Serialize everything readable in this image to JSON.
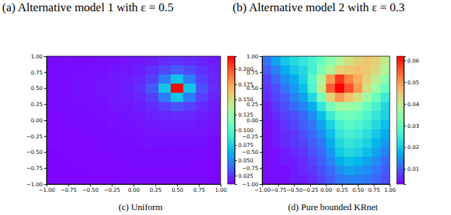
{
  "other_captions": [
    "(a) Alternative model 1 with ε = 0.5",
    "(b) Alternative model 2 with ε = 0.3"
  ],
  "chart_data": [
    {
      "type": "heatmap",
      "title": "(c) Uniform",
      "xlim": [
        -1,
        1
      ],
      "ylim": [
        -1,
        1
      ],
      "xticks": [
        {
          "value": -1,
          "label": "−1.00"
        },
        {
          "value": -0.75,
          "label": "−0.75"
        },
        {
          "value": -0.5,
          "label": "−0.50"
        },
        {
          "value": -0.25,
          "label": "−0.25"
        },
        {
          "value": 0,
          "label": "0.00"
        },
        {
          "value": 0.25,
          "label": "0.25"
        },
        {
          "value": 0.5,
          "label": "0.50"
        },
        {
          "value": 0.75,
          "label": "0.75"
        },
        {
          "value": 1,
          "label": "1.00"
        }
      ],
      "yticks": [
        {
          "value": -1,
          "label": "−1.00"
        },
        {
          "value": -0.75,
          "label": "−0.75"
        },
        {
          "value": -0.5,
          "label": "−0.50"
        },
        {
          "value": -0.25,
          "label": "−0.25"
        },
        {
          "value": 0,
          "label": "0.00"
        },
        {
          "value": 0.25,
          "label": "0.25"
        },
        {
          "value": 0.5,
          "label": "0.50"
        },
        {
          "value": 0.75,
          "label": "0.75"
        },
        {
          "value": 1,
          "label": "1.00"
        }
      ],
      "colorbar": {
        "range": [
          0.011,
          0.221
        ],
        "ticks": [
          0.025,
          {
            "value": 0.05,
            "label": "0.050"
          },
          0.075,
          {
            "value": 0.1,
            "label": "0.100"
          },
          0.125,
          {
            "value": 0.15,
            "label": "0.150"
          },
          0.175,
          {
            "value": 0.2,
            "label": "0.200"
          }
        ]
      },
      "cells": {
        "x": [
          -0.9286,
          -0.7857,
          -0.6429,
          -0.5,
          -0.3571,
          -0.2143,
          -0.0714,
          0.0714,
          0.2143,
          0.3571,
          0.5,
          0.6429,
          0.7857,
          0.9286
        ],
        "y": [
          0.9286,
          0.7857,
          0.6429,
          0.5,
          0.3571,
          0.2143,
          0.0714,
          -0.0714,
          -0.2143,
          -0.3571,
          -0.5,
          -0.6429,
          -0.7857,
          -0.9286
        ],
        "z": [
          [
            0.014,
            0.014,
            0.014,
            0.014,
            0.015,
            0.015,
            0.016,
            0.017,
            0.019,
            0.022,
            0.024,
            0.022,
            0.02,
            0.018
          ],
          [
            0.014,
            0.014,
            0.014,
            0.015,
            0.015,
            0.016,
            0.017,
            0.019,
            0.023,
            0.03,
            0.035,
            0.03,
            0.024,
            0.02
          ],
          [
            0.014,
            0.014,
            0.015,
            0.015,
            0.016,
            0.017,
            0.018,
            0.021,
            0.028,
            0.045,
            0.07,
            0.045,
            0.028,
            0.021
          ],
          [
            0.014,
            0.014,
            0.015,
            0.015,
            0.016,
            0.017,
            0.019,
            0.023,
            0.035,
            0.07,
            0.22,
            0.07,
            0.033,
            0.022
          ],
          [
            0.014,
            0.014,
            0.015,
            0.015,
            0.016,
            0.017,
            0.018,
            0.021,
            0.028,
            0.045,
            0.07,
            0.045,
            0.028,
            0.02
          ],
          [
            0.014,
            0.014,
            0.014,
            0.015,
            0.015,
            0.016,
            0.017,
            0.019,
            0.022,
            0.028,
            0.033,
            0.028,
            0.022,
            0.018
          ],
          [
            0.013,
            0.014,
            0.014,
            0.014,
            0.015,
            0.015,
            0.016,
            0.017,
            0.019,
            0.021,
            0.022,
            0.021,
            0.019,
            0.017
          ],
          [
            0.013,
            0.013,
            0.014,
            0.014,
            0.014,
            0.015,
            0.015,
            0.016,
            0.017,
            0.018,
            0.018,
            0.018,
            0.017,
            0.016
          ],
          [
            0.013,
            0.013,
            0.013,
            0.014,
            0.014,
            0.014,
            0.015,
            0.015,
            0.016,
            0.016,
            0.016,
            0.016,
            0.016,
            0.015
          ],
          [
            0.013,
            0.013,
            0.013,
            0.013,
            0.014,
            0.014,
            0.014,
            0.015,
            0.015,
            0.015,
            0.015,
            0.015,
            0.015,
            0.014
          ],
          [
            0.012,
            0.013,
            0.013,
            0.013,
            0.013,
            0.014,
            0.014,
            0.014,
            0.014,
            0.014,
            0.014,
            0.014,
            0.014,
            0.014
          ],
          [
            0.012,
            0.012,
            0.013,
            0.013,
            0.013,
            0.013,
            0.013,
            0.014,
            0.014,
            0.014,
            0.014,
            0.014,
            0.013,
            0.013
          ],
          [
            0.012,
            0.012,
            0.012,
            0.013,
            0.013,
            0.013,
            0.013,
            0.013,
            0.013,
            0.013,
            0.013,
            0.013,
            0.013,
            0.013
          ],
          [
            0.012,
            0.012,
            0.012,
            0.012,
            0.012,
            0.012,
            0.013,
            0.013,
            0.013,
            0.013,
            0.013,
            0.013,
            0.013,
            0.012
          ]
        ]
      }
    },
    {
      "type": "heatmap",
      "title": "(d) Pure bounded KRnet",
      "xlim": [
        -1,
        1
      ],
      "ylim": [
        -1,
        1
      ],
      "xticks": [
        {
          "value": -1,
          "label": "−1.00"
        },
        {
          "value": -0.75,
          "label": "−0.75"
        },
        {
          "value": -0.5,
          "label": "−0.50"
        },
        {
          "value": -0.25,
          "label": "−0.25"
        },
        {
          "value": 0,
          "label": "0.00"
        },
        {
          "value": 0.25,
          "label": "0.25"
        },
        {
          "value": 0.5,
          "label": "0.50"
        },
        {
          "value": 0.75,
          "label": "0.75"
        },
        {
          "value": 1,
          "label": "1.00"
        }
      ],
      "yticks": [
        {
          "value": -1,
          "label": "−1.00"
        },
        {
          "value": -0.75,
          "label": "−0.75"
        },
        {
          "value": -0.5,
          "label": "−0.50"
        },
        {
          "value": -0.25,
          "label": "−0.25"
        },
        {
          "value": 0,
          "label": "0.00"
        },
        {
          "value": 0.25,
          "label": "0.25"
        },
        {
          "value": 0.5,
          "label": "0.50"
        },
        {
          "value": 0.75,
          "label": "0.75"
        },
        {
          "value": 1,
          "label": "1.00"
        }
      ],
      "colorbar": {
        "range": [
          0.003,
          0.062
        ],
        "ticks": [
          0.01,
          0.02,
          0.03,
          0.04,
          0.05,
          0.06
        ]
      },
      "cells": {
        "x": [
          -0.9286,
          -0.7857,
          -0.6429,
          -0.5,
          -0.3571,
          -0.2143,
          -0.0714,
          0.0714,
          0.2143,
          0.3571,
          0.5,
          0.6429,
          0.7857,
          0.9286
        ],
        "y": [
          0.9286,
          0.7857,
          0.6429,
          0.5,
          0.3571,
          0.2143,
          0.0714,
          -0.0714,
          -0.2143,
          -0.3571,
          -0.5,
          -0.6429,
          -0.7857,
          -0.9286
        ],
        "z": [
          [
            0.012,
            0.016,
            0.02,
            0.022,
            0.024,
            0.026,
            0.03,
            0.034,
            0.038,
            0.042,
            0.044,
            0.045,
            0.044,
            0.04
          ],
          [
            0.01,
            0.013,
            0.017,
            0.02,
            0.022,
            0.026,
            0.032,
            0.038,
            0.044,
            0.045,
            0.046,
            0.045,
            0.043,
            0.038
          ],
          [
            0.008,
            0.011,
            0.014,
            0.017,
            0.021,
            0.028,
            0.038,
            0.05,
            0.058,
            0.052,
            0.048,
            0.044,
            0.04,
            0.034
          ],
          [
            0.007,
            0.009,
            0.012,
            0.015,
            0.019,
            0.027,
            0.04,
            0.055,
            0.062,
            0.056,
            0.05,
            0.042,
            0.036,
            0.03
          ],
          [
            0.006,
            0.008,
            0.01,
            0.013,
            0.016,
            0.022,
            0.032,
            0.044,
            0.05,
            0.046,
            0.042,
            0.036,
            0.03,
            0.025
          ],
          [
            0.005,
            0.007,
            0.009,
            0.011,
            0.013,
            0.017,
            0.024,
            0.032,
            0.036,
            0.036,
            0.034,
            0.03,
            0.026,
            0.022
          ],
          [
            0.005,
            0.006,
            0.008,
            0.009,
            0.011,
            0.014,
            0.019,
            0.025,
            0.03,
            0.031,
            0.03,
            0.027,
            0.024,
            0.021
          ],
          [
            0.004,
            0.005,
            0.007,
            0.008,
            0.01,
            0.012,
            0.016,
            0.021,
            0.026,
            0.028,
            0.027,
            0.025,
            0.022,
            0.019
          ],
          [
            0.004,
            0.005,
            0.006,
            0.007,
            0.009,
            0.011,
            0.014,
            0.019,
            0.024,
            0.026,
            0.025,
            0.023,
            0.02,
            0.017
          ],
          [
            0.004,
            0.005,
            0.006,
            0.007,
            0.008,
            0.01,
            0.012,
            0.017,
            0.022,
            0.024,
            0.023,
            0.021,
            0.018,
            0.015
          ],
          [
            0.004,
            0.004,
            0.005,
            0.006,
            0.007,
            0.009,
            0.011,
            0.015,
            0.02,
            0.022,
            0.021,
            0.019,
            0.016,
            0.013
          ],
          [
            0.004,
            0.004,
            0.005,
            0.005,
            0.006,
            0.008,
            0.01,
            0.013,
            0.017,
            0.019,
            0.018,
            0.016,
            0.014,
            0.011
          ],
          [
            0.004,
            0.004,
            0.004,
            0.005,
            0.006,
            0.007,
            0.009,
            0.011,
            0.014,
            0.016,
            0.015,
            0.014,
            0.012,
            0.01
          ],
          [
            0.004,
            0.004,
            0.004,
            0.005,
            0.005,
            0.006,
            0.008,
            0.01,
            0.012,
            0.013,
            0.013,
            0.012,
            0.011,
            0.009
          ]
        ]
      }
    }
  ]
}
